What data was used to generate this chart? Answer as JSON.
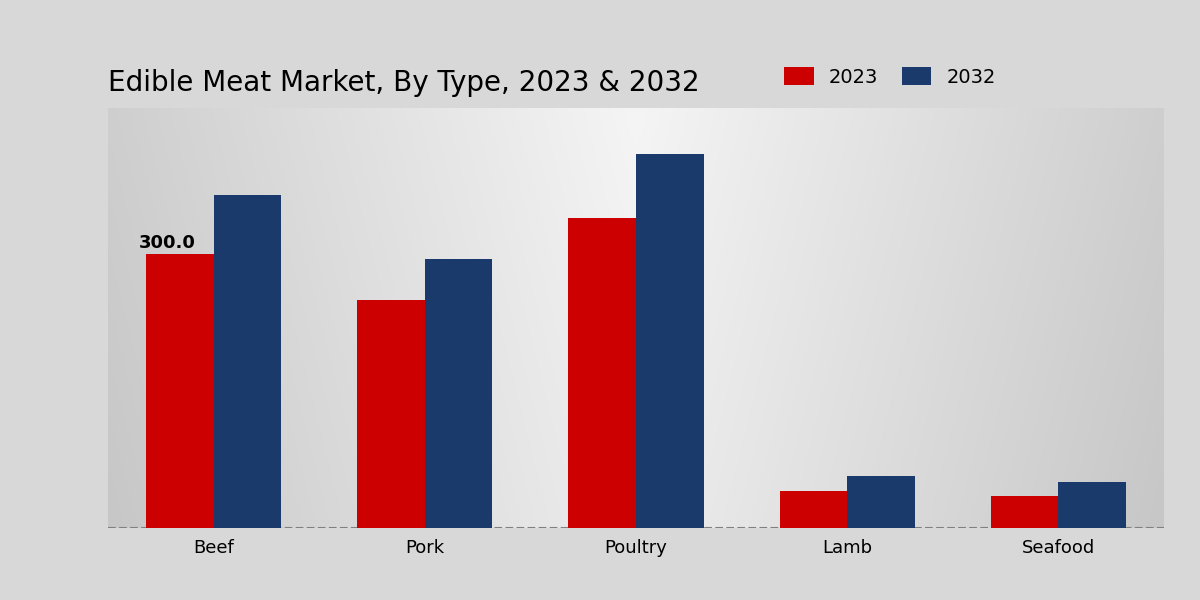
{
  "title": "Edible Meat Market, By Type, 2023 & 2032",
  "categories": [
    "Beef",
    "Pork",
    "Poultry",
    "Lamb",
    "Seafood"
  ],
  "values_2023": [
    300.0,
    250.0,
    340.0,
    40.0,
    35.0
  ],
  "values_2032": [
    365.0,
    295.0,
    410.0,
    57.0,
    50.0
  ],
  "color_2023": "#cc0000",
  "color_2032": "#1a3a6b",
  "legend_labels": [
    "2023",
    "2032"
  ],
  "annotation_label": "300.0",
  "bar_width": 0.32,
  "title_fontsize": 20,
  "axis_label_fontsize": 13,
  "tick_fontsize": 13,
  "legend_fontsize": 14,
  "ylim": [
    0,
    460
  ],
  "bg_left_color": "#c8c8c8",
  "bg_right_color": "#c8c8c8",
  "bg_center_color": "#f0f0f0"
}
